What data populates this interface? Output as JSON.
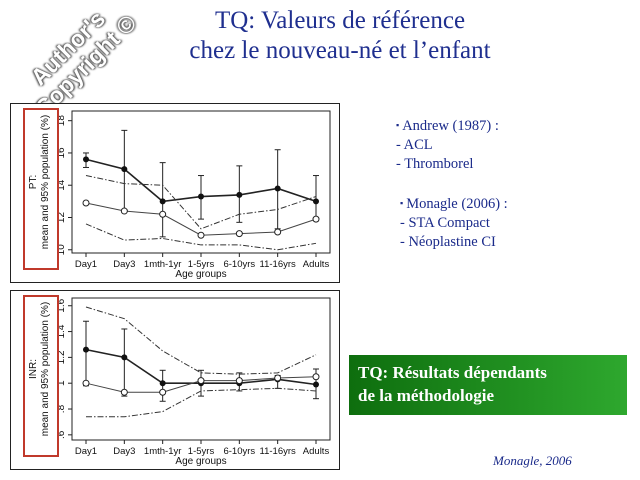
{
  "watermark": "Author's Copyright ©",
  "title": {
    "line1": "TQ: Valeurs de référence",
    "line2": "chez le nouveau-né et l’enfant"
  },
  "references": {
    "group1": {
      "head": "Andrew  (1987) :",
      "items": [
        "- ACL",
        "- Thromborel"
      ]
    },
    "group2": {
      "head": "Monagle (2006) :",
      "items": [
        "- STA Compact",
        "- Néoplastine CI"
      ]
    },
    "bullet": "▪"
  },
  "result_box": {
    "line1": "TQ: Résultats dépendants",
    "line2": "de la méthodologie"
  },
  "citation": "Monagle, 2006",
  "colors": {
    "title": "#1f2f8f",
    "text_blue": "#1a2a8a",
    "frame_red": "#c0392b",
    "green_start": "#0e6e0e",
    "green_end": "#2ea82e"
  },
  "chart_data": [
    {
      "type": "line",
      "categories": [
        "Day1",
        "Day3",
        "1mth-1yr",
        "1-5yrs",
        "6-10yrs",
        "11-16yrs",
        "Adults"
      ],
      "xlabel": "Age groups",
      "ylabel_line1": "PT:",
      "ylabel_line2": "mean and 95% population (%)",
      "ylim": [
        9.8,
        18.6
      ],
      "yticks": [
        "10",
        "12",
        "14",
        "16",
        "18"
      ],
      "ytick_values": [
        10,
        12,
        14,
        16,
        18
      ],
      "series": [
        {
          "style": "solid-filled",
          "values": [
            15.6,
            15.0,
            13.0,
            13.3,
            13.4,
            13.8,
            13.0
          ],
          "err_low": [
            15.1,
            12.5,
            10.8,
            11.9,
            11.7,
            11.3,
            11.8
          ],
          "err_high": [
            16.0,
            17.4,
            15.4,
            14.6,
            15.2,
            16.2,
            14.6
          ]
        },
        {
          "style": "solid-open",
          "values": [
            12.9,
            12.4,
            12.2,
            10.9,
            11.0,
            11.1,
            11.9
          ]
        },
        {
          "style": "dashdot",
          "values": [
            14.6,
            14.1,
            14.0,
            11.3,
            12.2,
            12.5,
            13.3
          ]
        },
        {
          "style": "dashdot",
          "values": [
            11.6,
            10.6,
            10.7,
            10.3,
            10.3,
            10.0,
            10.4
          ]
        }
      ]
    },
    {
      "type": "line",
      "categories": [
        "Day1",
        "Day3",
        "1mth-1yr",
        "1-5yrs",
        "6-10yrs",
        "11-16yrs",
        "Adults"
      ],
      "xlabel": "Age groups",
      "ylabel_line1": "INR:",
      "ylabel_line2": "mean and 95% population (%)",
      "ylim": [
        0.56,
        1.66
      ],
      "yticks": [
        ".6",
        ".8",
        "1",
        "1.2",
        "1.4",
        "1.6"
      ],
      "ytick_values": [
        0.6,
        0.8,
        1.0,
        1.2,
        1.4,
        1.6
      ],
      "series": [
        {
          "style": "solid-filled",
          "values": [
            1.26,
            1.2,
            1.0,
            1.0,
            1.0,
            1.03,
            0.99
          ],
          "err_low": [
            0.98,
            0.9,
            0.86,
            0.9,
            0.94,
            0.96,
            0.88
          ],
          "err_high": [
            1.48,
            1.42,
            1.1,
            1.1,
            1.08,
            1.06,
            1.11
          ]
        },
        {
          "style": "solid-open",
          "values": [
            1.0,
            0.93,
            0.93,
            1.02,
            1.02,
            1.04,
            1.05
          ]
        },
        {
          "style": "dashdot",
          "values": [
            1.59,
            1.5,
            1.25,
            1.08,
            1.07,
            1.08,
            1.22
          ]
        },
        {
          "style": "dashdot",
          "values": [
            0.74,
            0.74,
            0.78,
            0.94,
            0.95,
            0.96,
            0.94
          ]
        }
      ]
    }
  ]
}
